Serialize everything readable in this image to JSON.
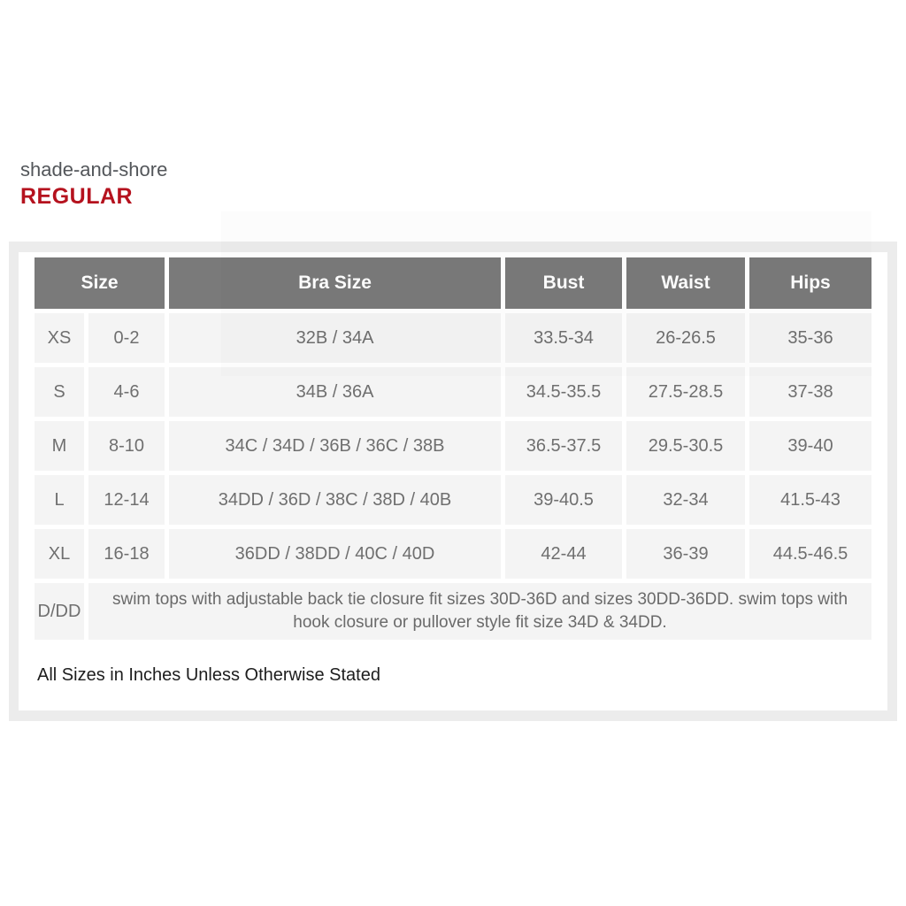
{
  "brand": {
    "name": "shade-and-shore",
    "fit_label": "REGULAR"
  },
  "size_chart": {
    "columns": [
      "Size",
      "Bra Size",
      "Bust",
      "Waist",
      "Hips"
    ],
    "rows": [
      {
        "letter": "XS",
        "dress": "0-2",
        "bra": "32B / 34A",
        "bust": "33.5-34",
        "waist": "26-26.5",
        "hips": "35-36"
      },
      {
        "letter": "S",
        "dress": "4-6",
        "bra": "34B / 36A",
        "bust": "34.5-35.5",
        "waist": "27.5-28.5",
        "hips": "37-38"
      },
      {
        "letter": "M",
        "dress": "8-10",
        "bra": "34C / 34D / 36B / 36C / 38B",
        "bust": "36.5-37.5",
        "waist": "29.5-30.5",
        "hips": "39-40"
      },
      {
        "letter": "L",
        "dress": "12-14",
        "bra": "34DD / 36D / 38C / 38D / 40B",
        "bust": "39-40.5",
        "waist": "32-34",
        "hips": "41.5-43"
      },
      {
        "letter": "XL",
        "dress": "16-18",
        "bra": "36DD / 38DD / 40C / 40D",
        "bust": "42-44",
        "waist": "36-39",
        "hips": "44.5-46.5"
      }
    ],
    "note_row": {
      "letter": "D/DD",
      "text": "swim tops with adjustable back tie closure fit sizes 30D-36D and sizes 30DD-36DD. swim tops with hook closure or pullover style fit size 34D & 34DD."
    },
    "footer": "All Sizes in Inches Unless Otherwise Stated"
  },
  "colors": {
    "accent_red": "#b5121e",
    "header_gray": "#7a7a7a",
    "cell_gray": "#f4f4f4",
    "panel_gray": "#ececec"
  }
}
